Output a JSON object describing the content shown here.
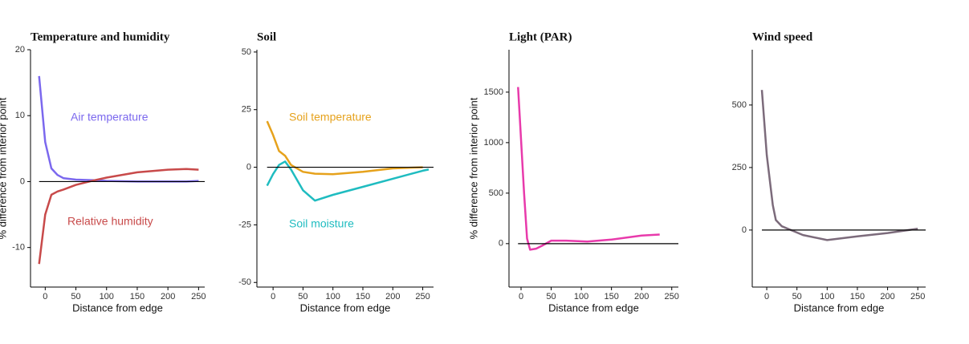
{
  "chart_data": [
    {
      "type": "line",
      "title": "Temperature and humidity",
      "x_label": "Distance from edge",
      "y_label": "% difference from interior point",
      "x": [
        -10,
        0,
        10,
        20,
        30,
        50,
        80,
        100,
        150,
        200,
        230,
        250
      ],
      "series": [
        {
          "name": "Air temperature",
          "color": "#7b68ee",
          "values": [
            16,
            6,
            2,
            1,
            0.5,
            0.3,
            0.2,
            0.1,
            0,
            0,
            0,
            0.1
          ]
        },
        {
          "name": "Relative humidity",
          "color": "#c84a4a",
          "values": [
            -12.5,
            -5,
            -2,
            -1.5,
            -1.2,
            -0.5,
            0.2,
            0.6,
            1.4,
            1.8,
            1.9,
            1.8
          ]
        }
      ],
      "hline": 0,
      "xlim": [
        -24,
        260
      ],
      "ylim": [
        -16,
        20
      ],
      "xticks": [
        0,
        50,
        100,
        150,
        200,
        250
      ],
      "yticks": [
        -10,
        0,
        10,
        20
      ]
    },
    {
      "type": "line",
      "title": "Soil",
      "x_label": "Distance from edge",
      "x": [
        -10,
        0,
        10,
        20,
        30,
        50,
        70,
        100,
        150,
        200,
        250,
        260
      ],
      "series": [
        {
          "name": "Soil temperature",
          "color": "#e6a21c",
          "values": [
            20,
            14,
            7,
            5,
            1,
            -2,
            -2.8,
            -3,
            -2,
            -0.5,
            0,
            null
          ]
        },
        {
          "name": "Soil moisture",
          "color": "#1fbcc0",
          "values": [
            -8,
            -3,
            1,
            2.5,
            -1,
            -10,
            -14.5,
            -12,
            -8.5,
            -5,
            -1.5,
            -1
          ]
        }
      ],
      "hline": 0,
      "xlim": [
        -27,
        268
      ],
      "ylim": [
        -52,
        51
      ],
      "xticks": [
        0,
        50,
        100,
        150,
        200,
        250
      ],
      "yticks": [
        -50,
        -25,
        0,
        25,
        50
      ]
    },
    {
      "type": "line",
      "title": "Light (PAR)",
      "x_label": "Distance from edge",
      "y_label": "% difference from interior point",
      "x": [
        -5,
        5,
        10,
        15,
        25,
        35,
        50,
        75,
        110,
        150,
        200,
        230
      ],
      "series": [
        {
          "name": "Light",
          "color": "#e83aab",
          "values": [
            1550,
            500,
            50,
            -60,
            -50,
            -20,
            30,
            30,
            20,
            40,
            80,
            90
          ]
        }
      ],
      "hline": 0,
      "xlim": [
        -20,
        261
      ],
      "ylim": [
        -430,
        1920
      ],
      "xticks": [
        0,
        50,
        100,
        150,
        200,
        250
      ],
      "yticks": [
        0,
        500,
        1000,
        1500
      ]
    },
    {
      "type": "line",
      "title": "Wind speed",
      "x_label": "Distance from edge",
      "x": [
        -8,
        0,
        10,
        15,
        25,
        40,
        60,
        100,
        150,
        200,
        250
      ],
      "series": [
        {
          "name": "Wind speed",
          "color": "#7c6b7b",
          "values": [
            560,
            300,
            100,
            40,
            15,
            0,
            -20,
            -40,
            -25,
            -12,
            5
          ]
        }
      ],
      "hline": 0,
      "xlim": [
        -24,
        263
      ],
      "ylim": [
        -228,
        721
      ],
      "xticks": [
        0,
        50,
        100,
        150,
        200,
        250
      ],
      "yticks": [
        0,
        250,
        500
      ]
    }
  ]
}
